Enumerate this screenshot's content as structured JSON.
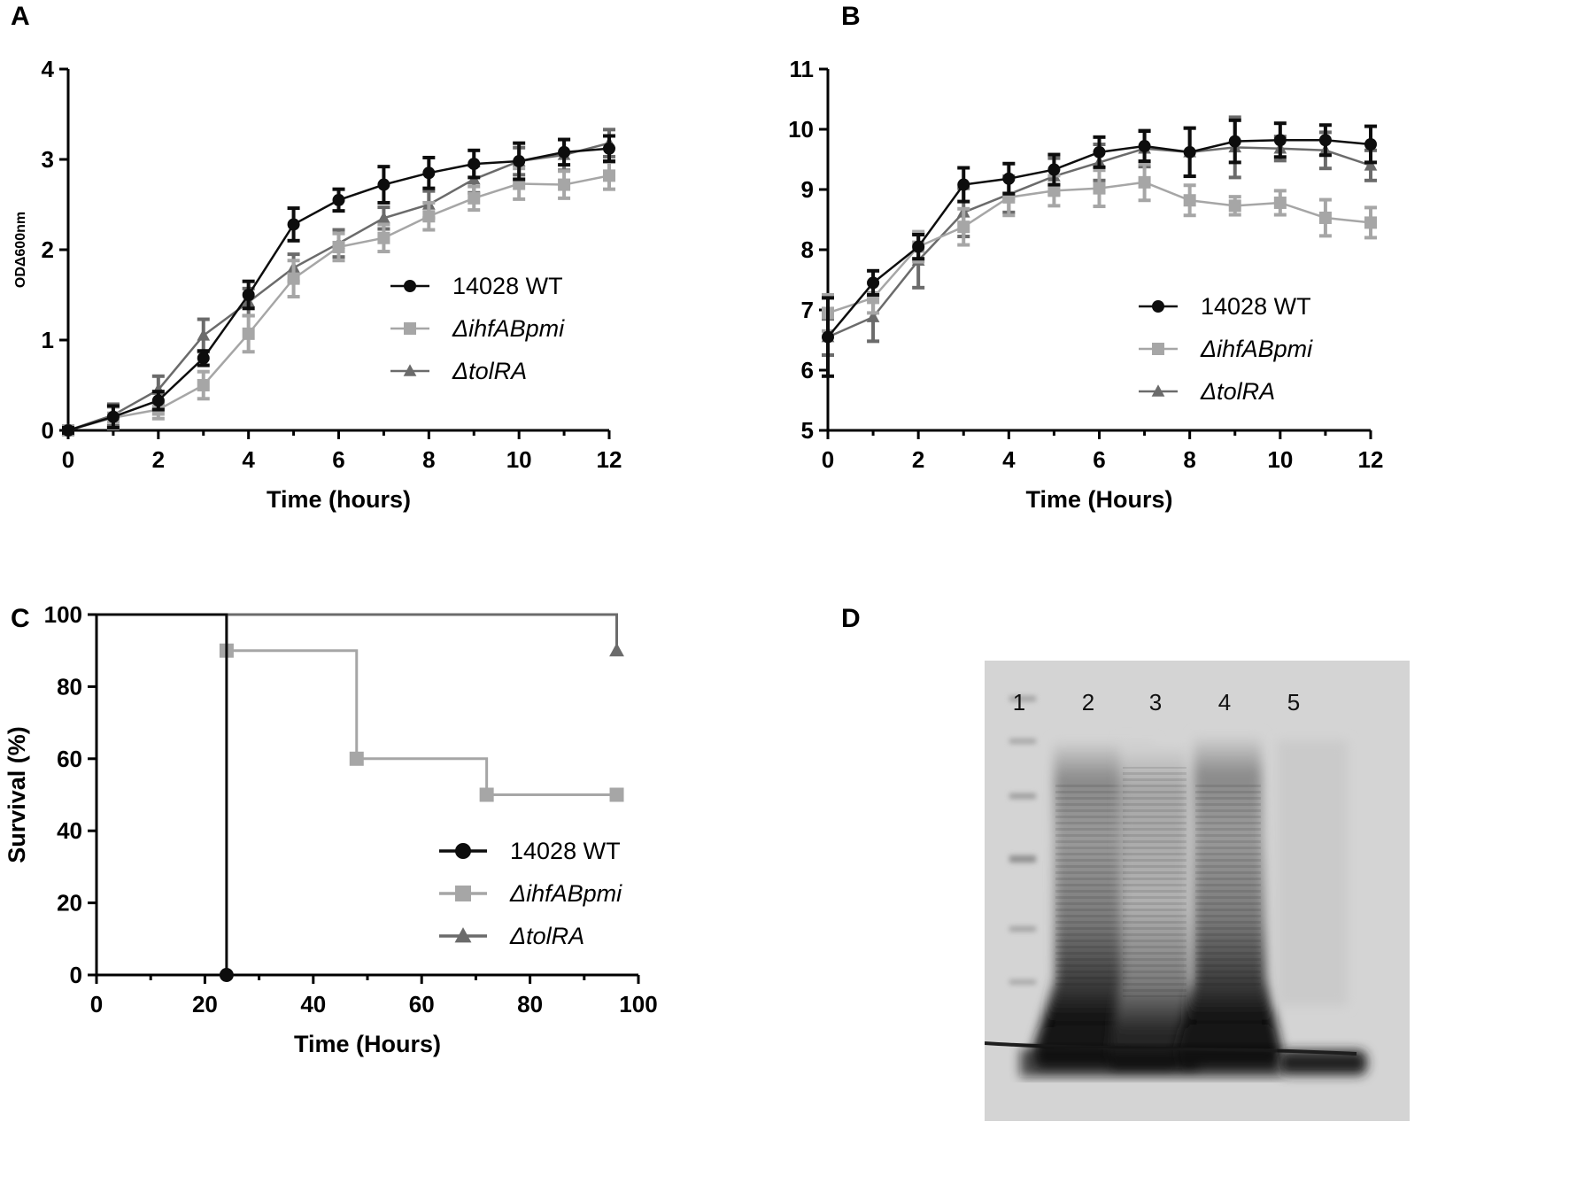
{
  "panels": {
    "a": "A",
    "b": "B",
    "c": "C",
    "d": "D"
  },
  "colors": {
    "wt": "#0d0d0d",
    "ihf": "#a6a6a6",
    "tol": "#6b6b6b"
  },
  "chart_data": [
    {
      "id": "A",
      "type": "line",
      "xlabel": "Time (hours)",
      "ylabel": "ODΔ600nm",
      "xlim": [
        0,
        12
      ],
      "ylim": [
        0,
        4
      ],
      "xticks": [
        "0",
        "2",
        "4",
        "6",
        "8",
        "10",
        "12"
      ],
      "yticks": [
        "0",
        "1",
        "2",
        "3",
        "4"
      ],
      "x": [
        0,
        1,
        2,
        3,
        4,
        5,
        6,
        7,
        8,
        9,
        10,
        11,
        12
      ],
      "legend_position": "center-right",
      "series": [
        {
          "name": "14028 WT",
          "italic": false,
          "marker": "circle",
          "color": "#0d0d0d",
          "values": [
            0.0,
            0.15,
            0.33,
            0.8,
            1.5,
            2.28,
            2.55,
            2.72,
            2.85,
            2.95,
            2.98,
            3.08,
            3.12
          ],
          "errors": [
            0.03,
            0.12,
            0.1,
            0.08,
            0.15,
            0.18,
            0.12,
            0.2,
            0.17,
            0.15,
            0.2,
            0.14,
            0.14
          ]
        },
        {
          "name": "ΔihfABpmi",
          "italic": true,
          "marker": "square",
          "color": "#a6a6a6",
          "values": [
            0.0,
            0.14,
            0.23,
            0.5,
            1.07,
            1.68,
            2.03,
            2.13,
            2.37,
            2.57,
            2.73,
            2.72,
            2.82
          ],
          "errors": [
            0.03,
            0.12,
            0.1,
            0.15,
            0.2,
            0.2,
            0.15,
            0.15,
            0.15,
            0.13,
            0.17,
            0.15,
            0.15
          ]
        },
        {
          "name": "ΔtolRA",
          "italic": true,
          "marker": "triangle",
          "color": "#6b6b6b",
          "values": [
            0.0,
            0.17,
            0.45,
            1.05,
            1.42,
            1.8,
            2.07,
            2.35,
            2.5,
            2.78,
            2.98,
            3.05,
            3.18
          ],
          "errors": [
            0.03,
            0.12,
            0.15,
            0.18,
            0.15,
            0.15,
            0.15,
            0.12,
            0.15,
            0.15,
            0.15,
            0.17,
            0.15
          ]
        }
      ]
    },
    {
      "id": "B",
      "type": "line",
      "xlabel": "Time (Hours)",
      "ylabel": "Log CFU/ml",
      "xlim": [
        0,
        12
      ],
      "ylim": [
        5,
        11
      ],
      "xticks": [
        "0",
        "2",
        "4",
        "6",
        "8",
        "10",
        "12"
      ],
      "yticks": [
        "5",
        "6",
        "7",
        "8",
        "9",
        "10",
        "11"
      ],
      "x": [
        0,
        1,
        2,
        3,
        4,
        5,
        6,
        7,
        8,
        9,
        10,
        11,
        12
      ],
      "legend_position": "center-right",
      "series": [
        {
          "name": "14028 WT",
          "italic": false,
          "marker": "circle",
          "color": "#0d0d0d",
          "values": [
            6.55,
            7.45,
            8.05,
            9.08,
            9.18,
            9.33,
            9.62,
            9.72,
            9.62,
            9.8,
            9.82,
            9.82,
            9.75
          ],
          "errors": [
            0.65,
            0.2,
            0.2,
            0.28,
            0.25,
            0.25,
            0.25,
            0.25,
            0.4,
            0.35,
            0.28,
            0.25,
            0.3
          ]
        },
        {
          "name": "ΔihfABpmi",
          "italic": true,
          "marker": "square",
          "color": "#a6a6a6",
          "values": [
            6.95,
            7.2,
            8.05,
            8.38,
            8.87,
            8.98,
            9.02,
            9.12,
            8.82,
            8.73,
            8.78,
            8.53,
            8.45
          ],
          "errors": [
            0.3,
            0.25,
            0.25,
            0.3,
            0.3,
            0.25,
            0.3,
            0.3,
            0.25,
            0.15,
            0.2,
            0.3,
            0.25
          ]
        },
        {
          "name": "ΔtolRA",
          "italic": true,
          "marker": "triangle",
          "color": "#6b6b6b",
          "values": [
            6.55,
            6.88,
            7.82,
            8.62,
            8.92,
            9.22,
            9.45,
            9.68,
            9.62,
            9.7,
            9.68,
            9.65,
            9.4
          ],
          "errors": [
            0.3,
            0.4,
            0.45,
            0.4,
            0.3,
            0.3,
            0.3,
            0.3,
            0.4,
            0.5,
            0.2,
            0.3,
            0.25
          ]
        }
      ]
    },
    {
      "id": "C",
      "type": "line",
      "subtype": "survival-step",
      "xlabel": "Time (Hours)",
      "ylabel": "Survival (%)",
      "xlim": [
        0,
        100
      ],
      "ylim": [
        0,
        100
      ],
      "xticks": [
        "0",
        "20",
        "40",
        "60",
        "80",
        "100"
      ],
      "yticks": [
        "0",
        "20",
        "40",
        "60",
        "80",
        "100"
      ],
      "legend_position": "bottom-right",
      "series": [
        {
          "name": "14028 WT",
          "italic": false,
          "marker": "circle",
          "color": "#0d0d0d",
          "steps": [
            [
              0,
              100
            ],
            [
              24,
              0
            ]
          ],
          "markers": [
            [
              24,
              0
            ]
          ]
        },
        {
          "name": "ΔihfABpmi",
          "italic": true,
          "marker": "square",
          "color": "#a6a6a6",
          "steps": [
            [
              0,
              100
            ],
            [
              24,
              90
            ],
            [
              48,
              60
            ],
            [
              72,
              50
            ],
            [
              96,
              50
            ]
          ],
          "markers": [
            [
              24,
              90
            ],
            [
              48,
              60
            ],
            [
              72,
              50
            ],
            [
              96,
              50
            ]
          ]
        },
        {
          "name": "ΔtolRA",
          "italic": true,
          "marker": "triangle",
          "color": "#6b6b6b",
          "steps": [
            [
              0,
              100
            ],
            [
              96,
              90
            ]
          ],
          "markers": [
            [
              96,
              90
            ]
          ]
        }
      ]
    }
  ],
  "gel": {
    "lanes": [
      "1",
      "2",
      "3",
      "4",
      "5"
    ]
  }
}
